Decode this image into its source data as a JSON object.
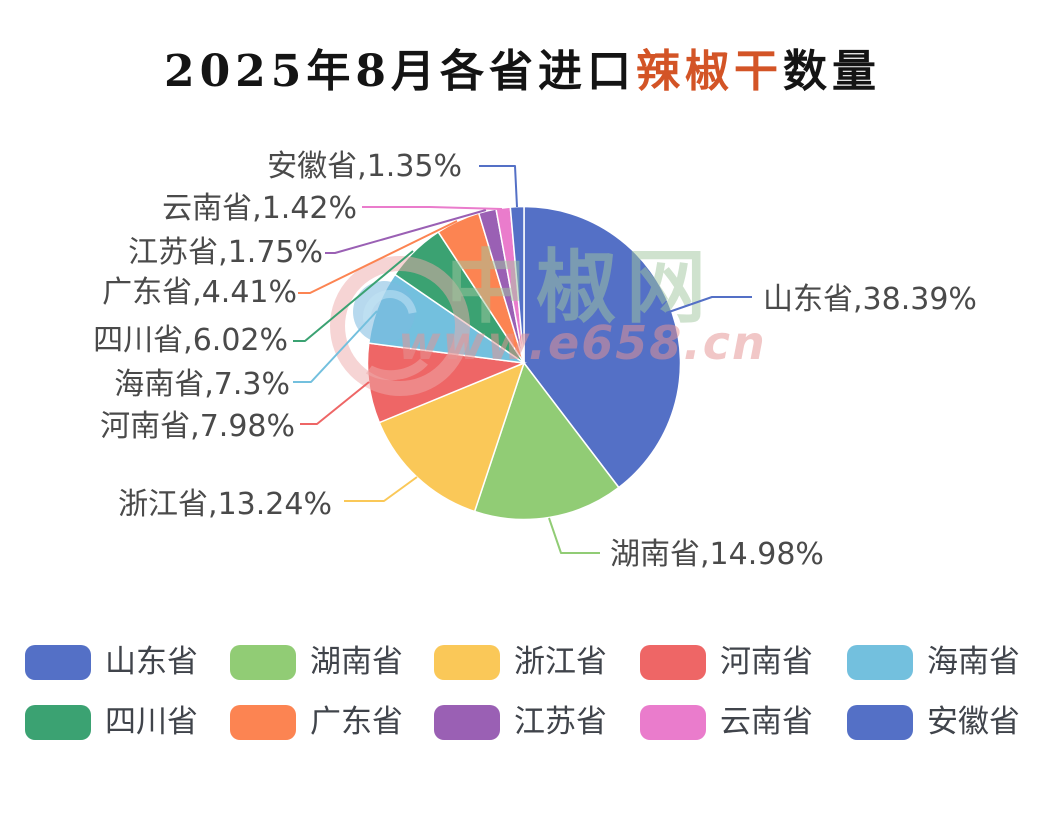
{
  "title": {
    "prefix": "2025年8月各省进口",
    "highlight": "辣椒干",
    "suffix": "数量",
    "highlight_color": "#d35426"
  },
  "watermark": {
    "brand": "中椒网",
    "url": "www.e658.cn"
  },
  "chart_data": {
    "type": "pie",
    "title": "2025年8月各省进口辣椒干数量",
    "value_format": "percent",
    "start_angle_deg": 0,
    "direction": "clockwise",
    "legend_position": "bottom",
    "slices": [
      {
        "id": "shandong",
        "name": "山东省",
        "pct": 38.39,
        "color": "#5470c6",
        "label": "山东省,38.39%"
      },
      {
        "id": "hunan",
        "name": "湖南省",
        "pct": 14.98,
        "color": "#91cc75",
        "label": "湖南省,14.98%"
      },
      {
        "id": "zhejiang",
        "name": "浙江省",
        "pct": 13.24,
        "color": "#fac858",
        "label": "浙江省,13.24%"
      },
      {
        "id": "henan",
        "name": "河南省",
        "pct": 7.98,
        "color": "#ee6666",
        "label": "河南省,7.98%"
      },
      {
        "id": "hainan",
        "name": "海南省",
        "pct": 7.3,
        "color": "#73c0de",
        "label": "海南省,7.3%"
      },
      {
        "id": "sichuan",
        "name": "四川省",
        "pct": 6.02,
        "color": "#3ba272",
        "label": "四川省,6.02%"
      },
      {
        "id": "guangdong",
        "name": "广东省",
        "pct": 4.41,
        "color": "#fc8452",
        "label": "广东省,4.41%"
      },
      {
        "id": "jiangsu",
        "name": "江苏省",
        "pct": 1.75,
        "color": "#9a60b4",
        "label": "江苏省,1.75%"
      },
      {
        "id": "yunnan",
        "name": "云南省",
        "pct": 1.42,
        "color": "#ea7ccc",
        "label": "云南省,1.42%"
      },
      {
        "id": "anhui",
        "name": "安徽省",
        "pct": 1.35,
        "color": "#5470c6",
        "label": "安徽省,1.35%"
      }
    ]
  }
}
